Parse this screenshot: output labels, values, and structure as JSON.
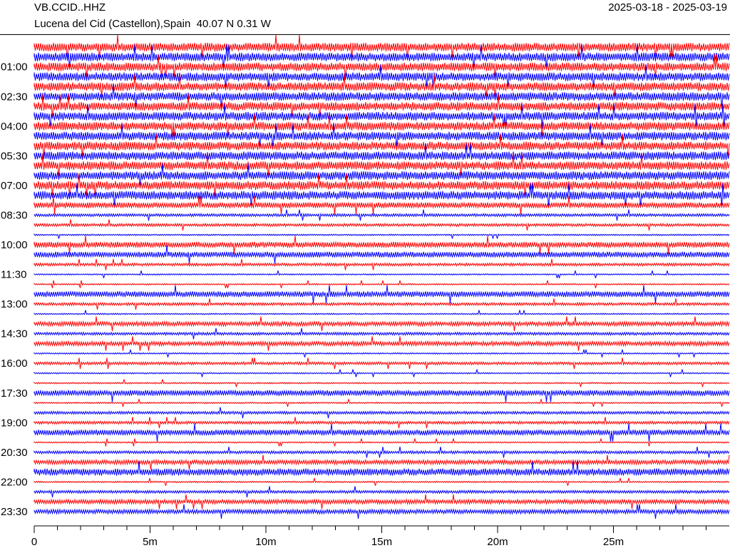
{
  "header": {
    "station": "VB.CCID..HHZ",
    "location": "Lucena del Cid (Castellon),Spain  40.07 N 0.31 W",
    "date_range": "2025-03-18 - 2025-03-19"
  },
  "chart_data": {
    "type": "helicorder",
    "trace_colors": [
      "#ff0000",
      "#0000ff"
    ],
    "row_minutes": 30,
    "row_count": 48,
    "y_labels": [
      "01:00",
      "02:30",
      "04:00",
      "05:30",
      "07:00",
      "08:30",
      "10:00",
      "11:30",
      "13:00",
      "14:30",
      "16:00",
      "17:30",
      "19:00",
      "20:30",
      "22:00",
      "23:30"
    ],
    "x_ticks": [
      "0",
      "5m",
      "10m",
      "15m",
      "20m",
      "25m"
    ],
    "x_range_minutes": [
      0,
      30
    ],
    "row_amplitude": [
      6,
      6,
      6,
      6,
      6,
      6,
      6,
      6,
      6,
      6,
      6,
      6,
      6,
      6,
      6,
      6,
      4,
      2,
      2,
      1,
      4,
      4,
      2,
      1,
      1,
      4,
      2,
      1,
      3,
      2,
      3,
      1,
      2,
      1,
      1,
      4,
      1,
      2,
      2,
      4,
      1,
      2,
      3,
      5,
      1,
      2,
      3,
      3
    ]
  }
}
